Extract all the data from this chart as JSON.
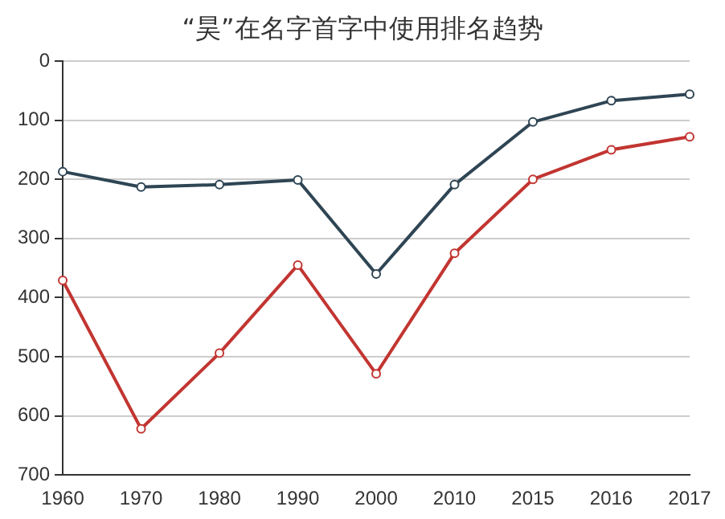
{
  "chart_data": {
    "type": "line",
    "title": "“昊”在名字首字中使用排名趋势",
    "categories": [
      "1960",
      "1970",
      "1980",
      "1990",
      "2000",
      "2010",
      "2015",
      "2016",
      "2017"
    ],
    "series": [
      {
        "color": "#2f4554",
        "values": [
          187,
          213,
          209,
          201,
          360,
          209,
          103,
          67,
          56
        ]
      },
      {
        "color": "#c23531",
        "values": [
          371,
          622,
          494,
          345,
          529,
          325,
          200,
          150,
          128
        ]
      }
    ],
    "ylim": [
      700,
      0
    ],
    "yticks": [
      0,
      100,
      200,
      300,
      400,
      500,
      600,
      700
    ],
    "grid": "y",
    "legend": false,
    "marker": "circle",
    "line_style": "solid"
  }
}
